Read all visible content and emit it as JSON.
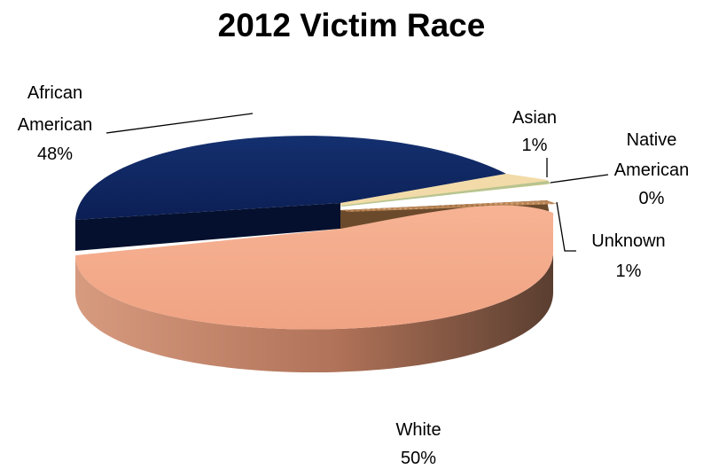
{
  "chart_data": {
    "type": "pie",
    "title": "2012 Victim Race",
    "slices": [
      {
        "label": "White",
        "value": 50,
        "value_label": "50%",
        "color": "#f4a98a"
      },
      {
        "label": "African American",
        "value": 48,
        "value_label": "48%",
        "color": "#0f2461"
      },
      {
        "label": "Asian",
        "value": 1,
        "value_label": "1%",
        "color": "#f2dba8"
      },
      {
        "label": "Native American",
        "value": 0,
        "value_label": "0%",
        "color": "#b7c48f"
      },
      {
        "label": "Unknown",
        "value": 1,
        "value_label": "1%",
        "color": "#b37d52"
      }
    ],
    "legend": "none",
    "style": "3d-exploded"
  }
}
